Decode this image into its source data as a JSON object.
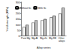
{
  "chart_data": {
    "type": "bar",
    "x_label": "Alloy series",
    "y_label": "Yield strength (MPa)",
    "categories": [
      "Pure Mg",
      "Mg-Al",
      "Mg-Zn",
      "Mg-RE",
      "Other alloys"
    ],
    "series": [
      {
        "name": "Without Sc",
        "color": "#ffffff",
        "values": [
          80,
          120,
          140,
          165,
          200
        ]
      },
      {
        "name": "With Sc",
        "color": "#bfbfbf",
        "values": [
          100,
          140,
          150,
          180,
          250
        ]
      }
    ],
    "ylim": [
      0,
      300
    ],
    "yticks": [
      0,
      50,
      100,
      150,
      200,
      250,
      300
    ],
    "grid": false,
    "legend": "upper left"
  }
}
